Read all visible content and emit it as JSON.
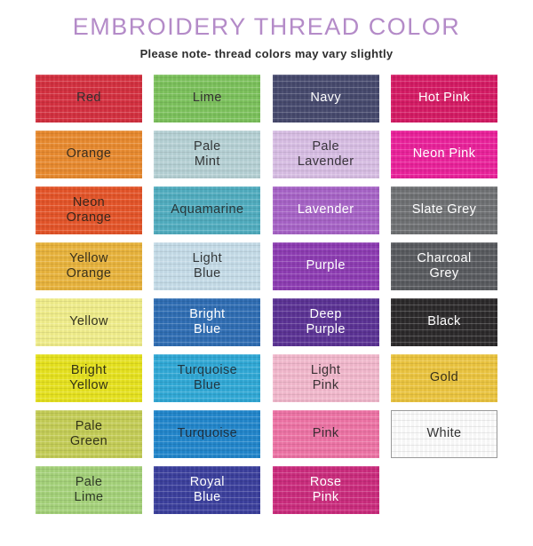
{
  "header": {
    "title": "EMBROIDERY THREAD COLOR",
    "subtitle": "Please note- thread colors may vary slightly",
    "title_color": "#b48bc8",
    "subtitle_color": "#2d2d2d"
  },
  "swatch_grid": {
    "columns": 4,
    "rows": 8,
    "dark_text_color": "#333031",
    "light_text_color": "#ffffff",
    "swatches": [
      {
        "label": "Red",
        "color": "#d5303f",
        "text_color": "#332f30"
      },
      {
        "label": "Lime",
        "color": "#7cc25c",
        "text_color": "#333031"
      },
      {
        "label": "Navy",
        "color": "#46496d",
        "text_color": "#ffffff"
      },
      {
        "label": "Hot Pink",
        "color": "#d61a64",
        "text_color": "#ffffff"
      },
      {
        "label": "Orange",
        "color": "#e98a2e",
        "text_color": "#3a2d1e"
      },
      {
        "label": "Pale\nMint",
        "color": "#b7d2d6",
        "text_color": "#333637"
      },
      {
        "label": "Pale\nLavender",
        "color": "#d9bfe5",
        "text_color": "#38333b"
      },
      {
        "label": "Neon Pink",
        "color": "#eb219b",
        "text_color": "#ffffff"
      },
      {
        "label": "Neon\nOrange",
        "color": "#e55428",
        "text_color": "#39261c"
      },
      {
        "label": "Aquamarine",
        "color": "#50adc0",
        "text_color": "#273639"
      },
      {
        "label": "Lavender",
        "color": "#a763c7",
        "text_color": "#ffffff"
      },
      {
        "label": "Slate Grey",
        "color": "#6f7174",
        "text_color": "#ffffff"
      },
      {
        "label": "Yellow\nOrange",
        "color": "#e9b43c",
        "text_color": "#39301a"
      },
      {
        "label": "Light\nBlue",
        "color": "#c6dde9",
        "text_color": "#333739"
      },
      {
        "label": "Purple",
        "color": "#8d3cb3",
        "text_color": "#ffffff"
      },
      {
        "label": "Charcoal\nGrey",
        "color": "#595b5f",
        "text_color": "#ffffff"
      },
      {
        "label": "Yellow",
        "color": "#f1ee8b",
        "text_color": "#35341f"
      },
      {
        "label": "Bright\nBlue",
        "color": "#2e6db4",
        "text_color": "#ffffff"
      },
      {
        "label": "Deep\nPurple",
        "color": "#5b3295",
        "text_color": "#ffffff"
      },
      {
        "label": "Black",
        "color": "#2b292a",
        "text_color": "#ffffff"
      },
      {
        "label": "Bright\nYellow",
        "color": "#e7e31e",
        "text_color": "#343313"
      },
      {
        "label": "Turquoise\nBlue",
        "color": "#30a9d7",
        "text_color": "#1f3540"
      },
      {
        "label": "Light\nPink",
        "color": "#f3b9cd",
        "text_color": "#3a3134"
      },
      {
        "label": "Gold",
        "color": "#ecc53f",
        "text_color": "#393118"
      },
      {
        "label": "Pale\nGreen",
        "color": "#c5ce57",
        "text_color": "#333417"
      },
      {
        "label": "Turquoise",
        "color": "#2186cc",
        "text_color": "#1d2e3d"
      },
      {
        "label": "Pink",
        "color": "#ee73a5",
        "text_color": "#3a2b31"
      },
      {
        "label": "White",
        "color": "#fdfdfd",
        "text_color": "#333333",
        "border": "#9a9a9a"
      },
      {
        "label": "Pale\nLime",
        "color": "#a5d37a",
        "text_color": "#2f3a26"
      },
      {
        "label": "Royal\nBlue",
        "color": "#3b3f9d",
        "text_color": "#ffffff"
      },
      {
        "label": "Rose\nPink",
        "color": "#cb2b7d",
        "text_color": "#ffffff"
      }
    ]
  }
}
